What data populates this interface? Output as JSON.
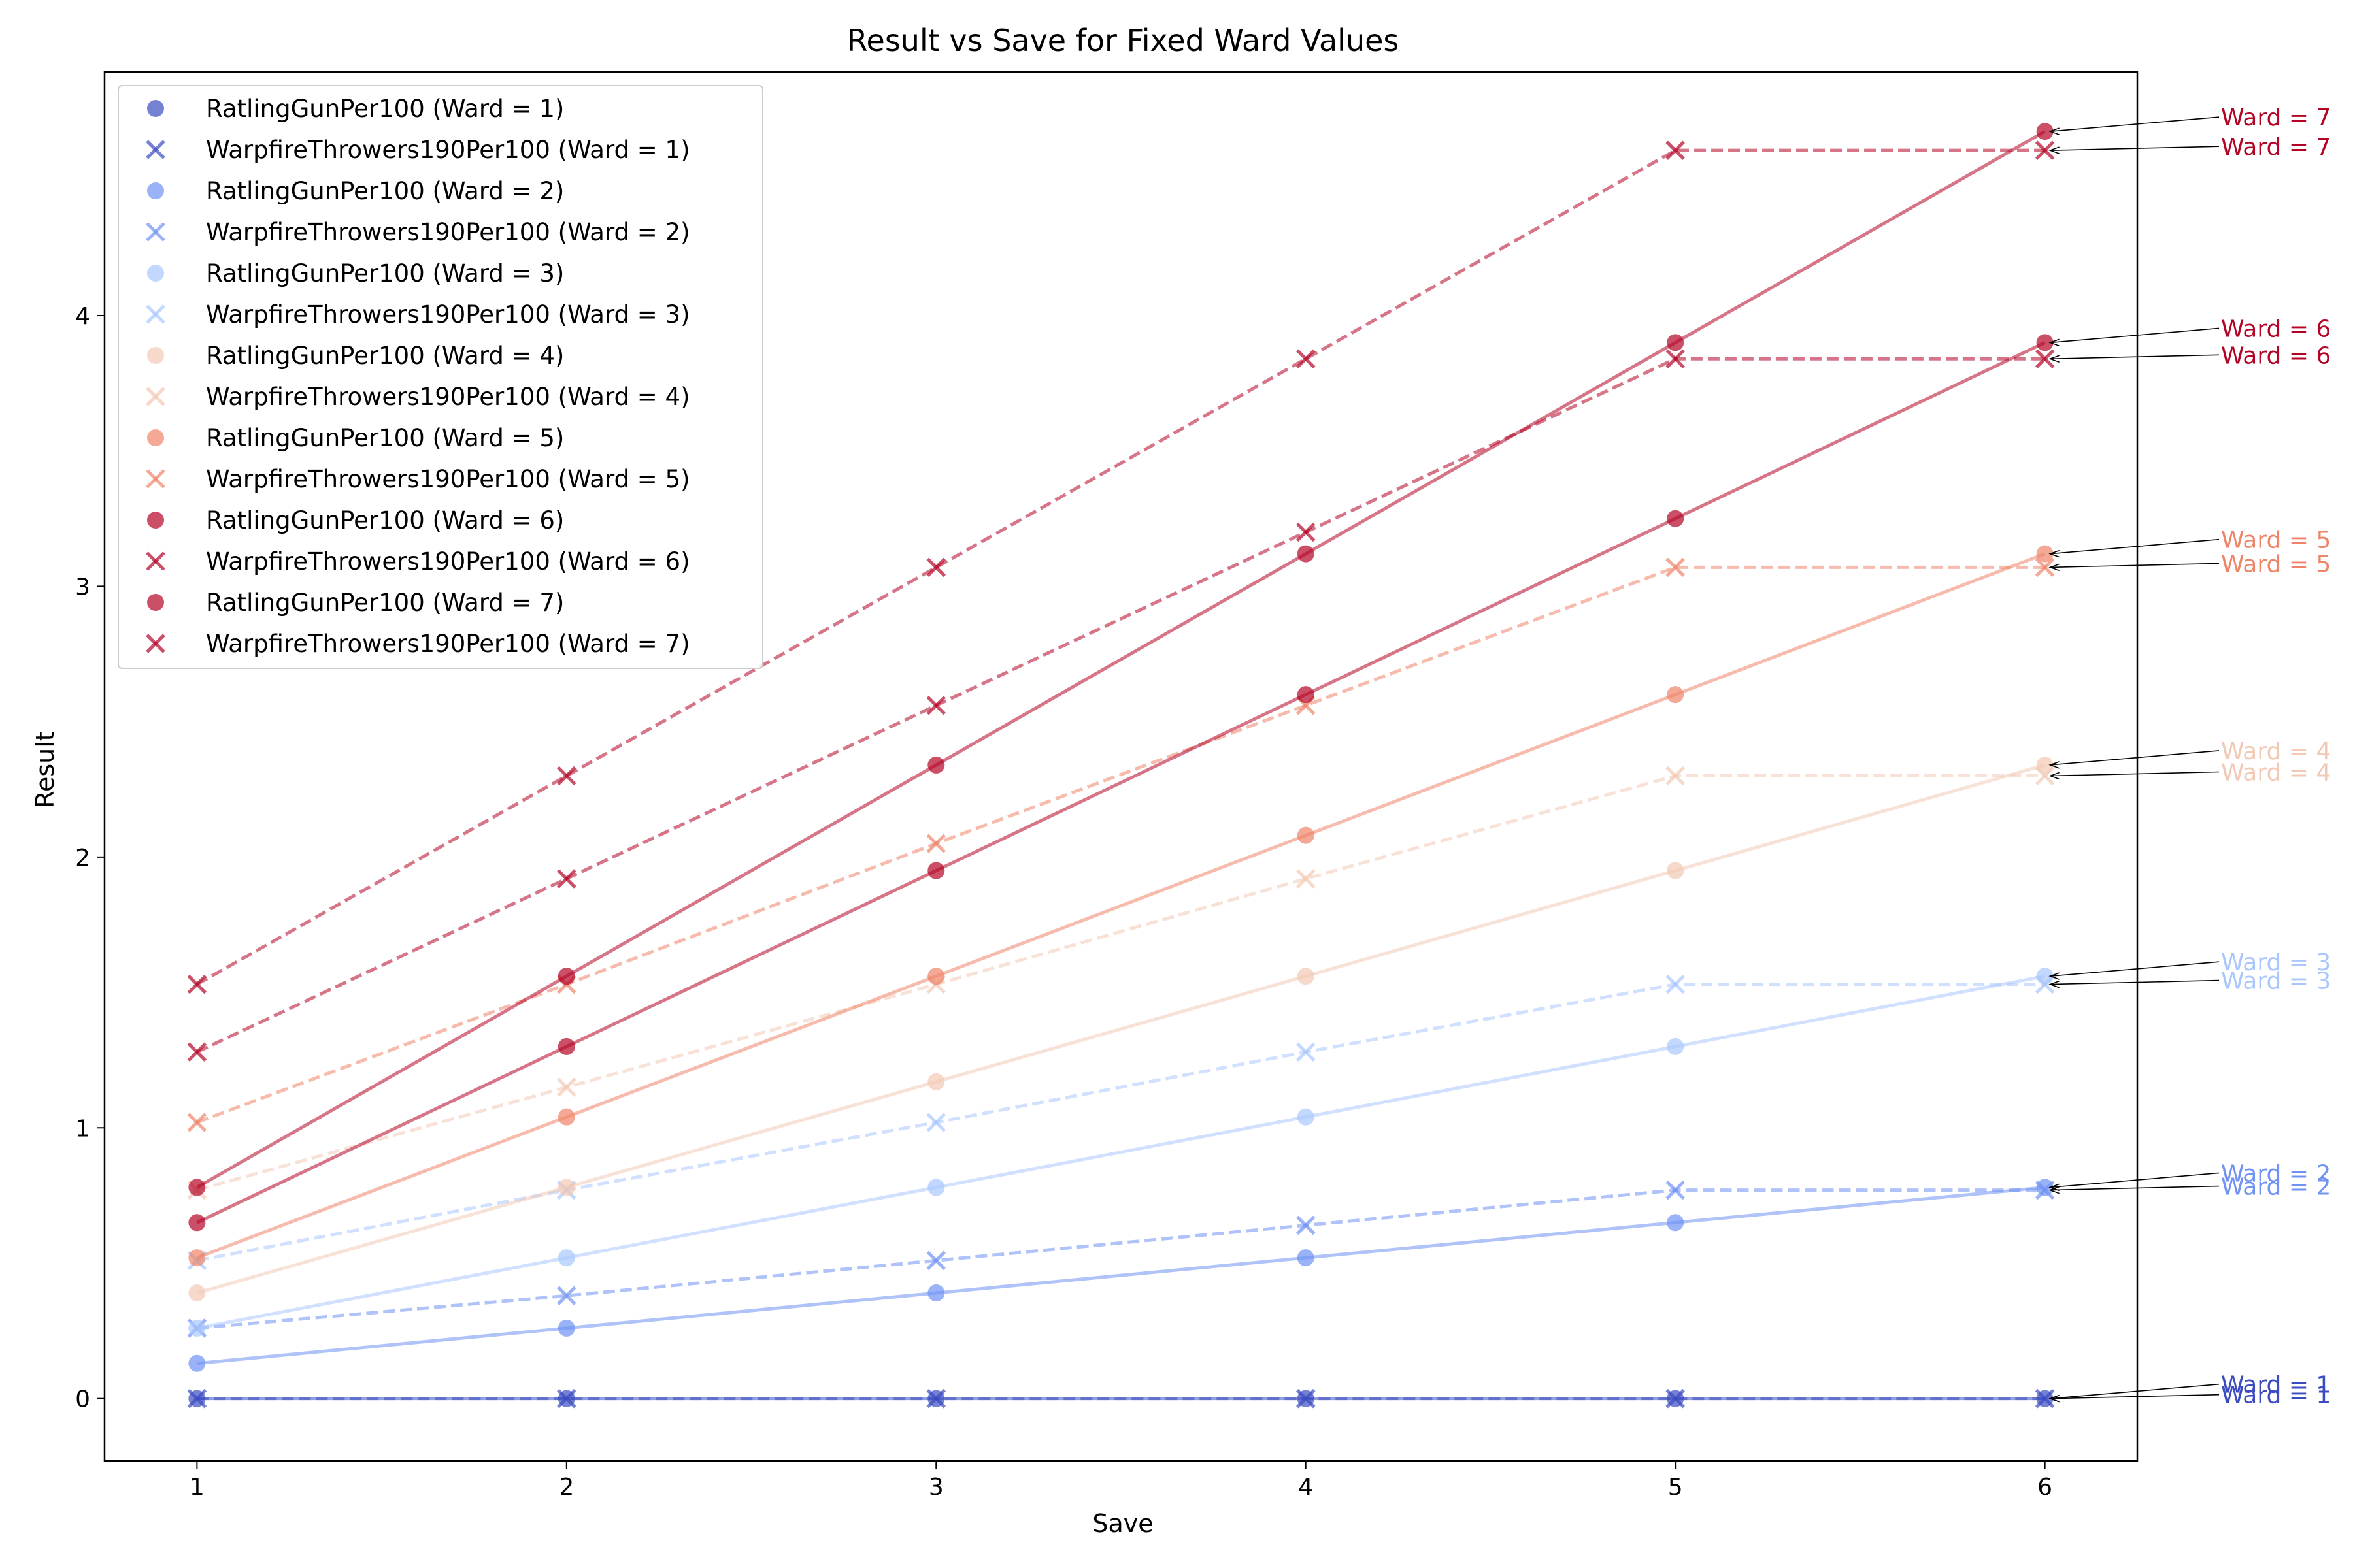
{
  "chart_data": {
    "type": "line",
    "title": "Result vs Save for Fixed Ward Values",
    "xlabel": "Save",
    "ylabel": "Result",
    "x": [
      1,
      2,
      3,
      4,
      5,
      6
    ],
    "xticks": [
      "1",
      "2",
      "3",
      "4",
      "5",
      "6"
    ],
    "yticks": [
      "0",
      "1",
      "2",
      "3",
      "4"
    ],
    "xlim": [
      0.75,
      6.25
    ],
    "ylim": [
      -0.23,
      4.9
    ],
    "grid": false,
    "legend_position": "upper-left",
    "series": [
      {
        "name": "RatlingGunPer100 (Ward = 1)",
        "ward": 1,
        "kind": "RatlingGun",
        "marker": "circle",
        "linestyle": "solid",
        "color": "#3b4cc0",
        "values": [
          0,
          0,
          0,
          0,
          0,
          0
        ]
      },
      {
        "name": "WarpfireThrowers190Per100 (Ward = 1)",
        "ward": 1,
        "kind": "Warpfire",
        "marker": "x",
        "linestyle": "dashed",
        "color": "#3b4cc0",
        "values": [
          0,
          0,
          0,
          0,
          0,
          0
        ]
      },
      {
        "name": "RatlingGunPer100 (Ward = 2)",
        "ward": 2,
        "kind": "RatlingGun",
        "marker": "circle",
        "linestyle": "solid",
        "color": "#6f92f3",
        "values": [
          0.13,
          0.26,
          0.39,
          0.52,
          0.65,
          0.78
        ]
      },
      {
        "name": "WarpfireThrowers190Per100 (Ward = 2)",
        "ward": 2,
        "kind": "Warpfire",
        "marker": "x",
        "linestyle": "dashed",
        "color": "#6f92f3",
        "values": [
          0.26,
          0.38,
          0.51,
          0.64,
          0.77,
          0.77
        ]
      },
      {
        "name": "RatlingGunPer100 (Ward = 3)",
        "ward": 3,
        "kind": "RatlingGun",
        "marker": "circle",
        "linestyle": "solid",
        "color": "#aac7fd",
        "values": [
          0.26,
          0.52,
          0.78,
          1.04,
          1.3,
          1.56
        ]
      },
      {
        "name": "WarpfireThrowers190Per100 (Ward = 3)",
        "ward": 3,
        "kind": "Warpfire",
        "marker": "x",
        "linestyle": "dashed",
        "color": "#aac7fd",
        "values": [
          0.51,
          0.77,
          1.02,
          1.28,
          1.53,
          1.53
        ]
      },
      {
        "name": "RatlingGunPer100 (Ward = 4)",
        "ward": 4,
        "kind": "RatlingGun",
        "marker": "circle",
        "linestyle": "solid",
        "color": "#f2c9b4",
        "values": [
          0.39,
          0.78,
          1.17,
          1.56,
          1.95,
          2.34
        ]
      },
      {
        "name": "WarpfireThrowers190Per100 (Ward = 4)",
        "ward": 4,
        "kind": "Warpfire",
        "marker": "x",
        "linestyle": "dashed",
        "color": "#f2c9b4",
        "values": [
          0.77,
          1.15,
          1.53,
          1.92,
          2.3,
          2.3
        ]
      },
      {
        "name": "RatlingGunPer100 (Ward = 5)",
        "ward": 5,
        "kind": "RatlingGun",
        "marker": "circle",
        "linestyle": "solid",
        "color": "#ee8468",
        "values": [
          0.52,
          1.04,
          1.56,
          2.08,
          2.6,
          3.12
        ]
      },
      {
        "name": "WarpfireThrowers190Per100 (Ward = 5)",
        "ward": 5,
        "kind": "Warpfire",
        "marker": "x",
        "linestyle": "dashed",
        "color": "#ee8468",
        "values": [
          1.02,
          1.53,
          2.05,
          2.56,
          3.07,
          3.07
        ]
      },
      {
        "name": "RatlingGunPer100 (Ward = 6)",
        "ward": 6,
        "kind": "RatlingGun",
        "marker": "circle",
        "linestyle": "solid",
        "color": "#b40426",
        "values": [
          0.65,
          1.3,
          1.95,
          2.6,
          3.25,
          3.9
        ]
      },
      {
        "name": "WarpfireThrowers190Per100 (Ward = 6)",
        "ward": 6,
        "kind": "Warpfire",
        "marker": "x",
        "linestyle": "dashed",
        "color": "#b40426",
        "values": [
          1.28,
          1.92,
          2.56,
          3.2,
          3.84,
          3.84
        ]
      },
      {
        "name": "RatlingGunPer100 (Ward = 7)",
        "ward": 7,
        "kind": "RatlingGun",
        "marker": "circle",
        "linestyle": "solid",
        "color": "#b40426",
        "values": [
          0.78,
          1.56,
          2.34,
          3.12,
          3.9,
          4.68
        ]
      },
      {
        "name": "WarpfireThrowers190Per100 (Ward = 7)",
        "ward": 7,
        "kind": "Warpfire",
        "marker": "x",
        "linestyle": "dashed",
        "color": "#b40426",
        "values": [
          1.53,
          2.3,
          3.07,
          3.84,
          4.61,
          4.61
        ]
      }
    ],
    "annotations": [
      {
        "text": "Ward = 1",
        "series": [
          0,
          1
        ],
        "color": "#3b4cc0"
      },
      {
        "text": "Ward = 2",
        "series": [
          2,
          3
        ],
        "color": "#6f92f3"
      },
      {
        "text": "Ward = 3",
        "series": [
          4,
          5
        ],
        "color": "#aac7fd"
      },
      {
        "text": "Ward = 4",
        "series": [
          6,
          7
        ],
        "color": "#f2c9b4"
      },
      {
        "text": "Ward = 5",
        "series": [
          8,
          9
        ],
        "color": "#ee8468"
      },
      {
        "text": "Ward = 6",
        "series": [
          10,
          11
        ],
        "color": "#b40426"
      },
      {
        "text": "Ward = 7",
        "series": [
          12,
          13
        ],
        "color": "#b40426"
      }
    ]
  }
}
